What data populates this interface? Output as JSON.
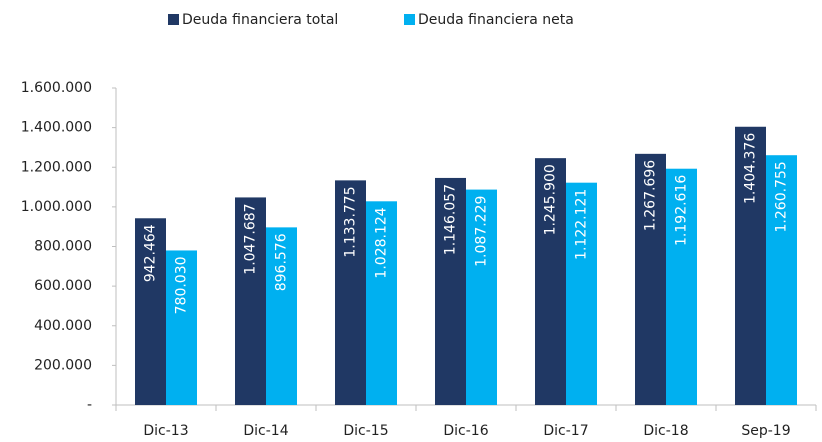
{
  "chart_data": {
    "type": "bar",
    "categories": [
      "Dic-13",
      "Dic-14",
      "Dic-15",
      "Dic-16",
      "Dic-17",
      "Dic-18",
      "Sep-19"
    ],
    "series": [
      {
        "name": "Deuda financiera total",
        "color": "#203864",
        "values": [
          942464,
          1047687,
          1133775,
          1146057,
          1245900,
          1267696,
          1404376
        ],
        "value_labels": [
          "942.464",
          "1.047.687",
          "1.133.775",
          "1.146.057",
          "1.245.900",
          "1.267.696",
          "1.404.376"
        ]
      },
      {
        "name": "Deuda financiera neta",
        "color": "#00b0f0",
        "values": [
          780030,
          896576,
          1028124,
          1087229,
          1122121,
          1192616,
          1260755
        ],
        "value_labels": [
          "780.030",
          "896.576",
          "1.028.124",
          "1.087.229",
          "1.122.121",
          "1.192.616",
          "1.260.755"
        ]
      }
    ],
    "ylim": [
      0,
      1600000
    ],
    "yticks": [
      {
        "value": 0,
        "label": "-"
      },
      {
        "value": 200000,
        "label": "200.000"
      },
      {
        "value": 400000,
        "label": "400.000"
      },
      {
        "value": 600000,
        "label": "600.000"
      },
      {
        "value": 800000,
        "label": "800.000"
      },
      {
        "value": 1000000,
        "label": "1.000.000"
      },
      {
        "value": 1200000,
        "label": "1.200.000"
      },
      {
        "value": 1400000,
        "label": "1.400.000"
      },
      {
        "value": 1600000,
        "label": "1.600.000"
      }
    ],
    "legend": "top",
    "grid": false
  }
}
